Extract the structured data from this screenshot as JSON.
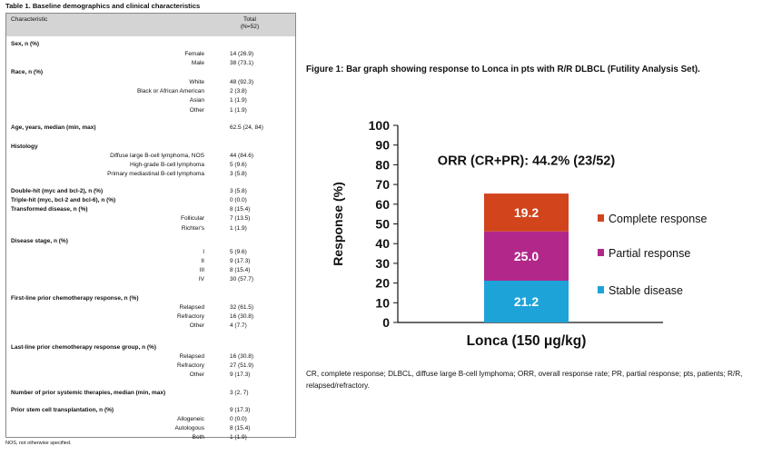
{
  "table": {
    "title": "Table 1. Baseline demographics and clinical characteristics",
    "header_characteristic": "Characteristic",
    "header_total": "Total",
    "header_n": "(N=52)",
    "rows": [
      {
        "type": "header",
        "label": "Sex, n (%)",
        "value": ""
      },
      {
        "type": "item",
        "label": "Female",
        "value": "14 (26.9)"
      },
      {
        "type": "item",
        "label": "Male",
        "value": "38 (73.1)"
      },
      {
        "type": "header",
        "label": "Race, n (%)",
        "value": ""
      },
      {
        "type": "item",
        "label": "White",
        "value": "48 (92.3)"
      },
      {
        "type": "item",
        "label": "Black or African American",
        "value": "2 (3.8)"
      },
      {
        "type": "item",
        "label": "Asian",
        "value": "1 (1.9)"
      },
      {
        "type": "item",
        "label": "Other",
        "value": "1 (1.9)"
      },
      {
        "type": "header",
        "label": "Age, years, median (min, max)",
        "value": "62.5 (24, 84)"
      },
      {
        "type": "header",
        "label": "Histology",
        "value": ""
      },
      {
        "type": "item",
        "label": "Diffuse large B-cell lymphoma, NOS",
        "value": "44 (84.6)"
      },
      {
        "type": "item",
        "label": "High-grade B-cell lymphoma",
        "value": "5 (9.6)"
      },
      {
        "type": "item",
        "label": "Primary mediastinal B-cell lymphoma",
        "value": "3 (5.8)"
      },
      {
        "type": "header",
        "label": "Double-hit (myc and bcl-2), n (%)",
        "value": "3 (5.8)"
      },
      {
        "type": "header",
        "label": "Triple-hit (myc, bcl-2 and bcl-6), n (%)",
        "value": "0 (0.0)"
      },
      {
        "type": "header",
        "label": "Transformed disease, n (%)",
        "value": "8 (15.4)"
      },
      {
        "type": "item",
        "label": "Follicular",
        "value": "7 (13.5)"
      },
      {
        "type": "item",
        "label": "Richter's",
        "value": "1 (1.9)"
      },
      {
        "type": "header",
        "label": "Disease stage, n (%)",
        "value": ""
      },
      {
        "type": "item",
        "label": "I",
        "value": "5 (9.6)"
      },
      {
        "type": "item",
        "label": "II",
        "value": "9 (17.3)"
      },
      {
        "type": "item",
        "label": "III",
        "value": "8 (15.4)"
      },
      {
        "type": "item",
        "label": "IV",
        "value": "30 (57.7)"
      },
      {
        "type": "header",
        "label": "First-line prior chemotherapy response, n (%)",
        "value": ""
      },
      {
        "type": "item",
        "label": "Relapsed",
        "value": "32 (61.5)"
      },
      {
        "type": "item",
        "label": "Refractory",
        "value": "16 (30.8)"
      },
      {
        "type": "item",
        "label": "Other",
        "value": "4 (7.7)"
      },
      {
        "type": "header",
        "label": "Last-line prior chemotherapy response group, n (%)",
        "value": ""
      },
      {
        "type": "item",
        "label": "Relapsed",
        "value": "16 (30.8)"
      },
      {
        "type": "item",
        "label": "Refractory",
        "value": "27 (51.9)"
      },
      {
        "type": "item",
        "label": "Other",
        "value": "9 (17.3)"
      },
      {
        "type": "header",
        "label": "Number of prior systemic therapies, median (min, max)",
        "value": "3 (2, 7)"
      },
      {
        "type": "header",
        "label": "Prior stem cell transplantation, n (%)",
        "value": "9 (17.3)"
      },
      {
        "type": "item",
        "label": "Allogeneic",
        "value": "0 (0.0)"
      },
      {
        "type": "item",
        "label": "Autologous",
        "value": "8 (15.4)"
      },
      {
        "type": "item",
        "label": "Both",
        "value": "1 (1.9)"
      }
    ],
    "footnote": "NOS, not otherwise specified."
  },
  "figure": {
    "title": "Figure 1: Bar graph showing response to Lonca in pts with R/R DLBCL (Futility Analysis Set).",
    "caption": "CR, complete response; DLBCL, diffuse large B-cell lymphoma; ORR, overall response rate; PR, partial response; pts, patients; R/R, relapsed/refractory."
  },
  "chart_data": {
    "type": "bar",
    "stacked": true,
    "categories": [
      "Lonca (150 μg/kg)"
    ],
    "ylabel": "Response (%)",
    "xlabel": "",
    "ylim": [
      0,
      100
    ],
    "yticks": [
      0,
      10,
      20,
      30,
      40,
      50,
      60,
      70,
      80,
      90,
      100
    ],
    "grid": false,
    "legend_position": "right",
    "annotation": "ORR (CR+PR): 44.2% (23/52)",
    "series": [
      {
        "name": "Stable disease",
        "values": [
          21.2
        ],
        "color": "#1ea3d8"
      },
      {
        "name": "Partial response",
        "values": [
          25.0
        ],
        "color": "#b2278a"
      },
      {
        "name": "Complete response",
        "values": [
          19.2
        ],
        "color": "#d1441c"
      }
    ]
  }
}
